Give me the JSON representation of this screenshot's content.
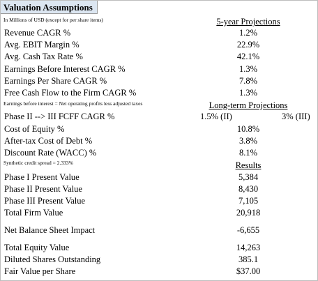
{
  "header": {
    "title": "Valuation Assumptions",
    "subtitle": "In Millions of USD (except for per share items)"
  },
  "five_year": {
    "heading": "5-year Projections",
    "rows": [
      {
        "label": "Revenue CAGR %",
        "value": "1.2%"
      },
      {
        "label": "Avg. EBIT Margin %",
        "value": "22.9%"
      },
      {
        "label": "Avg. Cash Tax Rate %",
        "value": "42.1%"
      },
      {
        "label": "Earnings Before Interest CAGR %",
        "value": "1.3%"
      },
      {
        "label": "Earnings Per Share CAGR %",
        "value": "7.8%"
      },
      {
        "label": "Free Cash Flow to the Firm CAGR %",
        "value": "1.3%"
      }
    ],
    "note": "Earnings before interest = Net operating profits less adjusted taxes"
  },
  "long_term": {
    "heading": "Long-term Projections",
    "phase_row": {
      "label": "Phase II --> III FCFF CAGR %",
      "values": [
        "1.5% (II)",
        "3% (III)"
      ]
    },
    "rows": [
      {
        "label": "Cost of Equity %",
        "value": "10.8%"
      },
      {
        "label": "After-tax Cost of Debt %",
        "value": "3.8%"
      },
      {
        "label": "Discount Rate (WACC) %",
        "value": "8.1%"
      }
    ],
    "note": "Synthetic credit spread = 2.333%"
  },
  "results": {
    "heading": "Results",
    "rows": [
      {
        "label": "Phase I Present Value",
        "value": "5,384"
      },
      {
        "label": "Phase II Present Value",
        "value": "8,430"
      },
      {
        "label": "Phase III Present Value",
        "value": "7,105"
      },
      {
        "label": "Total Firm Value",
        "value": "20,918"
      },
      {
        "label": "Net Balance Sheet Impact",
        "value": "-6,655"
      },
      {
        "label": "Total Equity Value",
        "value": "14,263"
      },
      {
        "label": "Diluted Shares Outstanding",
        "value": "385.1"
      },
      {
        "label": "Fair Value per Share",
        "value": "$37.00"
      }
    ]
  }
}
